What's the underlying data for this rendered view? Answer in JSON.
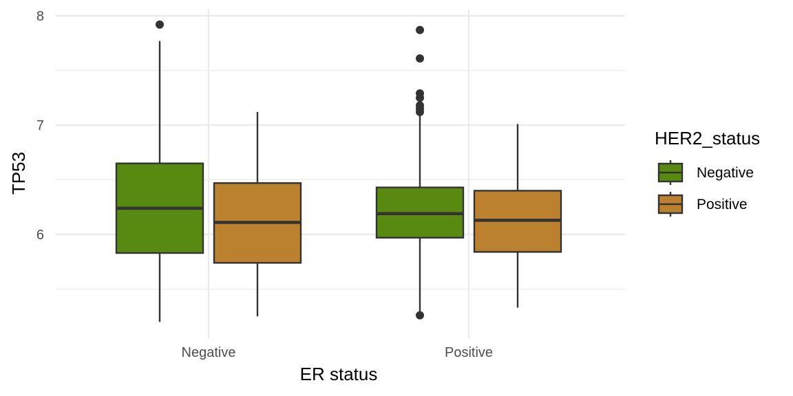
{
  "chart_data": {
    "type": "boxplot",
    "title": "",
    "xlabel": "ER status",
    "ylabel": "TP53",
    "categories": [
      "Negative",
      "Positive"
    ],
    "ylim": [
      5.05,
      8.1
    ],
    "y_ticks": [
      "6",
      "7",
      "8"
    ],
    "y_tick_values": [
      6,
      7,
      8
    ],
    "grid": "major and minor",
    "legend": {
      "title": "HER2_status",
      "placement": "right",
      "entries": [
        "Negative",
        "Positive"
      ]
    },
    "colors": {
      "Negative": "#588a12",
      "Positive": "#bb812e",
      "outline": "#333333",
      "grid": "#ebebeb"
    },
    "series": [
      {
        "name": "Negative",
        "boxes": [
          {
            "category": "Negative",
            "min": 5.2,
            "q1": 5.83,
            "median": 6.24,
            "q3": 6.65,
            "max": 7.77,
            "outliers": [
              7.92
            ]
          },
          {
            "category": "Positive",
            "min": 5.25,
            "q1": 5.97,
            "median": 6.19,
            "q3": 6.43,
            "max": 7.1,
            "outliers": [
              5.26,
              7.12,
              7.15,
              7.18,
              7.25,
              7.29,
              7.61,
              7.87
            ]
          }
        ]
      },
      {
        "name": "Positive",
        "boxes": [
          {
            "category": "Negative",
            "min": 5.25,
            "q1": 5.74,
            "median": 6.11,
            "q3": 6.47,
            "max": 7.12,
            "outliers": []
          },
          {
            "category": "Positive",
            "min": 5.33,
            "q1": 5.84,
            "median": 6.13,
            "q3": 6.4,
            "max": 7.01,
            "outliers": []
          }
        ]
      }
    ]
  }
}
